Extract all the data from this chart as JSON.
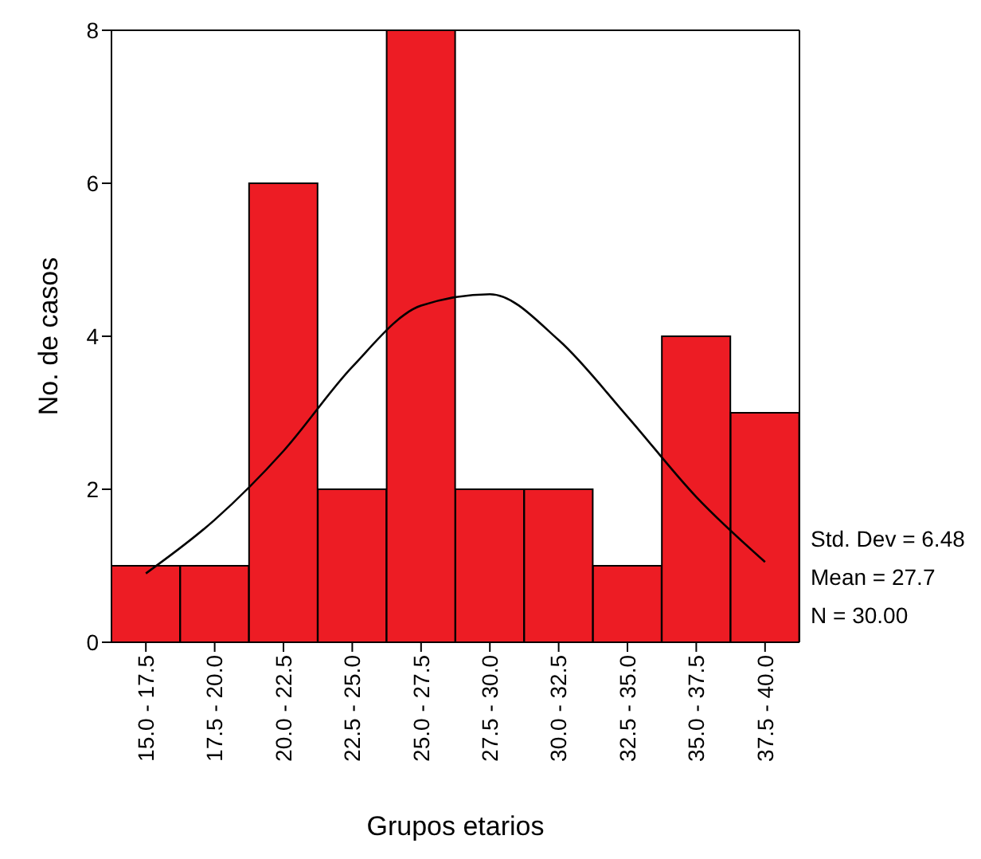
{
  "chart_data": {
    "type": "bar",
    "xlabel": "Grupos etarios",
    "ylabel": "No. de casos",
    "categories": [
      "15.0 - 17.5",
      "17.5 - 20.0",
      "20.0 - 22.5",
      "22.5 - 25.0",
      "25.0 - 27.5",
      "27.5 - 30.0",
      "30.0 - 32.5",
      "32.5 - 35.0",
      "35.0 - 37.5",
      "37.5 - 40.0"
    ],
    "values": [
      1,
      1,
      6,
      2,
      8,
      2,
      2,
      1,
      4,
      3
    ],
    "color": "#ed1c24",
    "ylim": [
      0,
      8
    ],
    "yticks": [
      0,
      2,
      4,
      6,
      8
    ],
    "grid": false,
    "series": [
      {
        "type": "line",
        "color": "#000000",
        "values": [
          0.9,
          1.6,
          2.5,
          3.6,
          4.4,
          4.55,
          3.95,
          2.95,
          1.9,
          1.05
        ]
      }
    ],
    "annotations": [
      "Std. Dev = 6.48",
      "Mean = 27.7",
      "N = 30.00"
    ]
  }
}
